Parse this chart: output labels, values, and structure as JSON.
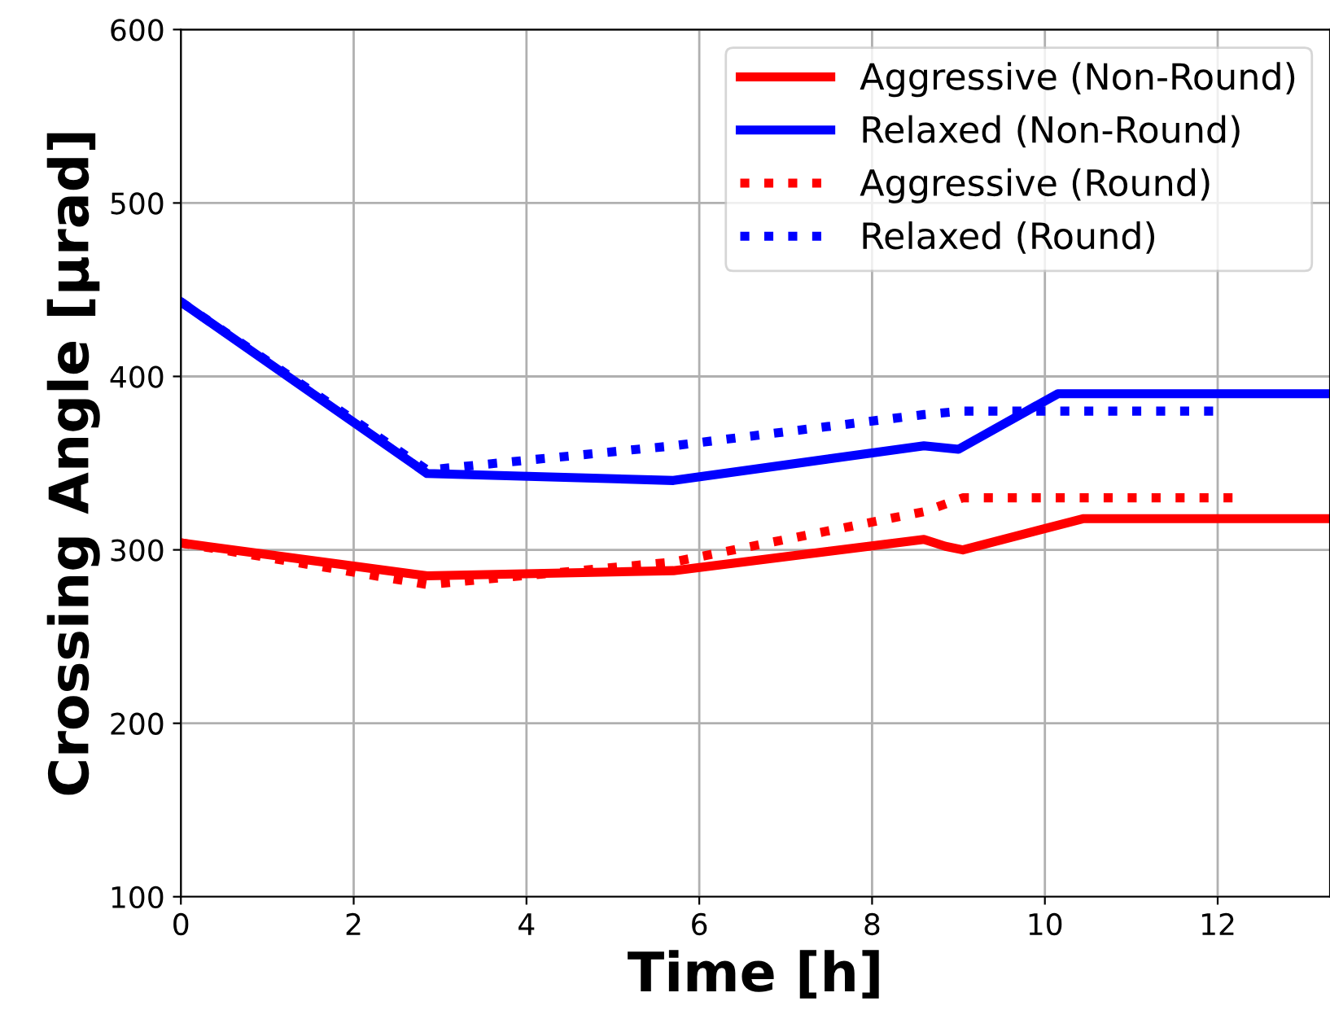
{
  "chart_data": {
    "type": "line",
    "xlabel": "Time [h]",
    "ylabel": "Crossing Angle [μrad]",
    "xlim": [
      0,
      13.3
    ],
    "ylim": [
      100,
      600
    ],
    "xticks": [
      0,
      2,
      4,
      6,
      8,
      10,
      12
    ],
    "yticks": [
      100,
      200,
      300,
      400,
      500,
      600
    ],
    "grid": true,
    "legend": "top right",
    "marker": "none",
    "series": [
      {
        "name": "Aggressive (Non-Round)",
        "color": "#ff0000",
        "line_style": "solid",
        "x": [
          0,
          2.85,
          5.7,
          8.6,
          8.85,
          9.05,
          10.45,
          13.3
        ],
        "values": [
          304,
          285,
          288,
          306,
          302,
          300,
          318,
          318
        ]
      },
      {
        "name": "Relaxed (Non-Round)",
        "color": "#0000ff",
        "line_style": "solid",
        "x": [
          0,
          2.85,
          5.7,
          8.6,
          9.0,
          10.15,
          13.3
        ],
        "values": [
          443,
          344,
          340,
          360,
          358,
          390,
          390
        ]
      },
      {
        "name": "Aggressive (Round)",
        "color": "#ff0000",
        "line_style": "dotted",
        "x": [
          0,
          2.85,
          5.7,
          8.6,
          9.05,
          12.2
        ],
        "values": [
          304,
          280,
          293,
          322,
          330,
          330
        ]
      },
      {
        "name": "Relaxed (Round)",
        "color": "#0000ff",
        "line_style": "dotted",
        "x": [
          0,
          2.85,
          5.7,
          8.6,
          9.05,
          12.0
        ],
        "values": [
          443,
          346,
          360,
          378,
          380,
          380
        ]
      }
    ]
  }
}
